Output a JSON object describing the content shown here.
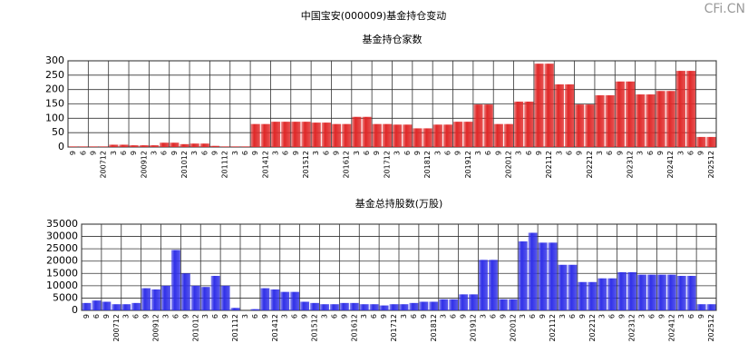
{
  "title": "中国宝安(000009)基金持仓变动",
  "watermark": "CFi.CN",
  "chart_data": [
    {
      "type": "bar",
      "title": "基金持仓家数",
      "categories": [
        "9",
        "6",
        "9",
        "200712",
        "3",
        "6",
        "9",
        "200912",
        "3",
        "6",
        "9",
        "201012",
        "3",
        "6",
        "9",
        "201112",
        "3",
        "6",
        "9",
        "201412",
        "3",
        "6",
        "9",
        "201512",
        "3",
        "6",
        "9",
        "201612",
        "3",
        "6",
        "9",
        "201712",
        "3",
        "6",
        "9",
        "201812",
        "3",
        "6",
        "9",
        "201912",
        "3",
        "6",
        "9",
        "202012",
        "3",
        "6",
        "9",
        "202112",
        "3",
        "6",
        "9",
        "202212",
        "3",
        "6",
        "9",
        "202312",
        "3",
        "6",
        "9",
        "202412",
        "3",
        "6",
        "9",
        "202512"
      ],
      "values": [
        2,
        2,
        2,
        2,
        8,
        8,
        6,
        6,
        6,
        15,
        15,
        10,
        12,
        12,
        4,
        2,
        2,
        2,
        80,
        80,
        88,
        88,
        88,
        88,
        85,
        85,
        80,
        80,
        105,
        105,
        80,
        80,
        78,
        78,
        65,
        65,
        78,
        78,
        88,
        88,
        148,
        148,
        80,
        80,
        158,
        158,
        290,
        290,
        218,
        218,
        148,
        148,
        180,
        180,
        228,
        228,
        183,
        183,
        195,
        195,
        265,
        265,
        35,
        35
      ],
      "color": "#e02828",
      "ylim": [
        0,
        300
      ],
      "yticks": [
        0,
        50,
        100,
        150,
        200,
        250,
        300
      ],
      "grid": true
    },
    {
      "type": "bar",
      "title": "基金总持股数(万股)",
      "categories": [
        "9",
        "6",
        "9",
        "200712",
        "3",
        "6",
        "9",
        "200912",
        "3",
        "6",
        "9",
        "201012",
        "3",
        "6",
        "9",
        "201112",
        "3",
        "6",
        "9",
        "201412",
        "3",
        "6",
        "9",
        "201512",
        "3",
        "6",
        "9",
        "201612",
        "3",
        "6",
        "9",
        "201712",
        "3",
        "6",
        "9",
        "201812",
        "3",
        "6",
        "9",
        "201912",
        "3",
        "6",
        "9",
        "202012",
        "3",
        "6",
        "9",
        "202112",
        "3",
        "6",
        "9",
        "202212",
        "3",
        "6",
        "9",
        "202312",
        "3",
        "6",
        "9",
        "202412",
        "3",
        "6",
        "9",
        "202512"
      ],
      "values": [
        3000,
        4000,
        3500,
        2500,
        2500,
        3000,
        9000,
        8500,
        10000,
        24500,
        15000,
        10000,
        9500,
        14000,
        10000,
        1000,
        0,
        500,
        9000,
        8500,
        7500,
        7500,
        3500,
        3000,
        2500,
        2500,
        3000,
        3000,
        2500,
        2500,
        2000,
        2500,
        2500,
        3000,
        3500,
        3500,
        4500,
        4500,
        6500,
        6500,
        20500,
        20500,
        4500,
        4500,
        28000,
        31500,
        27500,
        27500,
        18500,
        18500,
        11500,
        11500,
        13000,
        13000,
        15500,
        15500,
        14500,
        14500,
        14500,
        14500,
        14000,
        14000,
        2500,
        2500
      ],
      "color": "#3030e8",
      "ylim": [
        0,
        35000
      ],
      "yticks": [
        0,
        5000,
        10000,
        15000,
        20000,
        25000,
        30000,
        35000
      ],
      "grid": true
    }
  ]
}
